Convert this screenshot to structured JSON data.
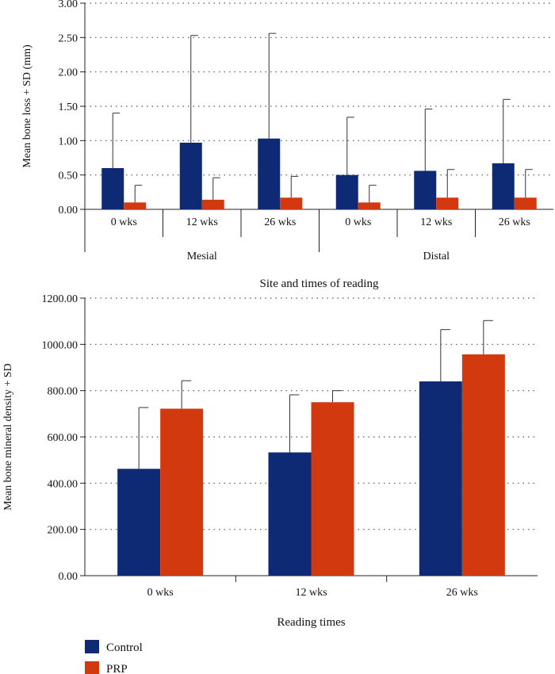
{
  "colors": {
    "control": "#0f2a74",
    "prp": "#d2390f",
    "axis": "#222222",
    "grid": "#555555"
  },
  "legend": [
    {
      "name": "Control",
      "color": "#0f2a74"
    },
    {
      "name": "PRP",
      "color": "#d2390f"
    }
  ],
  "chart_data": [
    {
      "type": "bar",
      "ylabel": "Mean bone loss + SD (mm)",
      "xlabel": "Site and times of reading",
      "ylim": [
        0,
        3
      ],
      "yticks": [
        "0.00",
        "0.50",
        "1.00",
        "1.50",
        "2.00",
        "2.50",
        "3.00"
      ],
      "ytick_values": [
        0,
        0.5,
        1,
        1.5,
        2,
        2.5,
        3
      ],
      "categories": [
        "0 wks",
        "12 wks",
        "26 wks",
        "0 wks",
        "12 wks",
        "26 wks"
      ],
      "groups": [
        "Mesial",
        "Distal"
      ],
      "grid": true,
      "series": [
        {
          "name": "Control",
          "values": [
            0.6,
            0.97,
            1.03,
            0.5,
            0.56,
            0.67
          ],
          "sd_upper": [
            1.4,
            2.53,
            2.56,
            1.34,
            1.46,
            1.6
          ]
        },
        {
          "name": "PRP",
          "values": [
            0.1,
            0.14,
            0.17,
            0.1,
            0.17,
            0.17
          ],
          "sd_upper": [
            0.35,
            0.46,
            0.48,
            0.35,
            0.58,
            0.58
          ]
        }
      ]
    },
    {
      "type": "bar",
      "ylabel": "Mean bone mineral density + SD",
      "xlabel": "Reading times",
      "ylim": [
        0,
        1200
      ],
      "yticks": [
        "0.00",
        "200.00",
        "400.00",
        "600.00",
        "800.00",
        "1000.00",
        "1200.00"
      ],
      "ytick_values": [
        0,
        200,
        400,
        600,
        800,
        1000,
        1200
      ],
      "categories": [
        "0 wks",
        "12 wks",
        "26 wks"
      ],
      "grid": true,
      "series": [
        {
          "name": "Control",
          "values": [
            462,
            533,
            840
          ],
          "sd_upper": [
            727,
            782,
            1064
          ]
        },
        {
          "name": "PRP",
          "values": [
            722,
            750,
            957
          ],
          "sd_upper": [
            843,
            800,
            1103
          ]
        }
      ]
    }
  ]
}
